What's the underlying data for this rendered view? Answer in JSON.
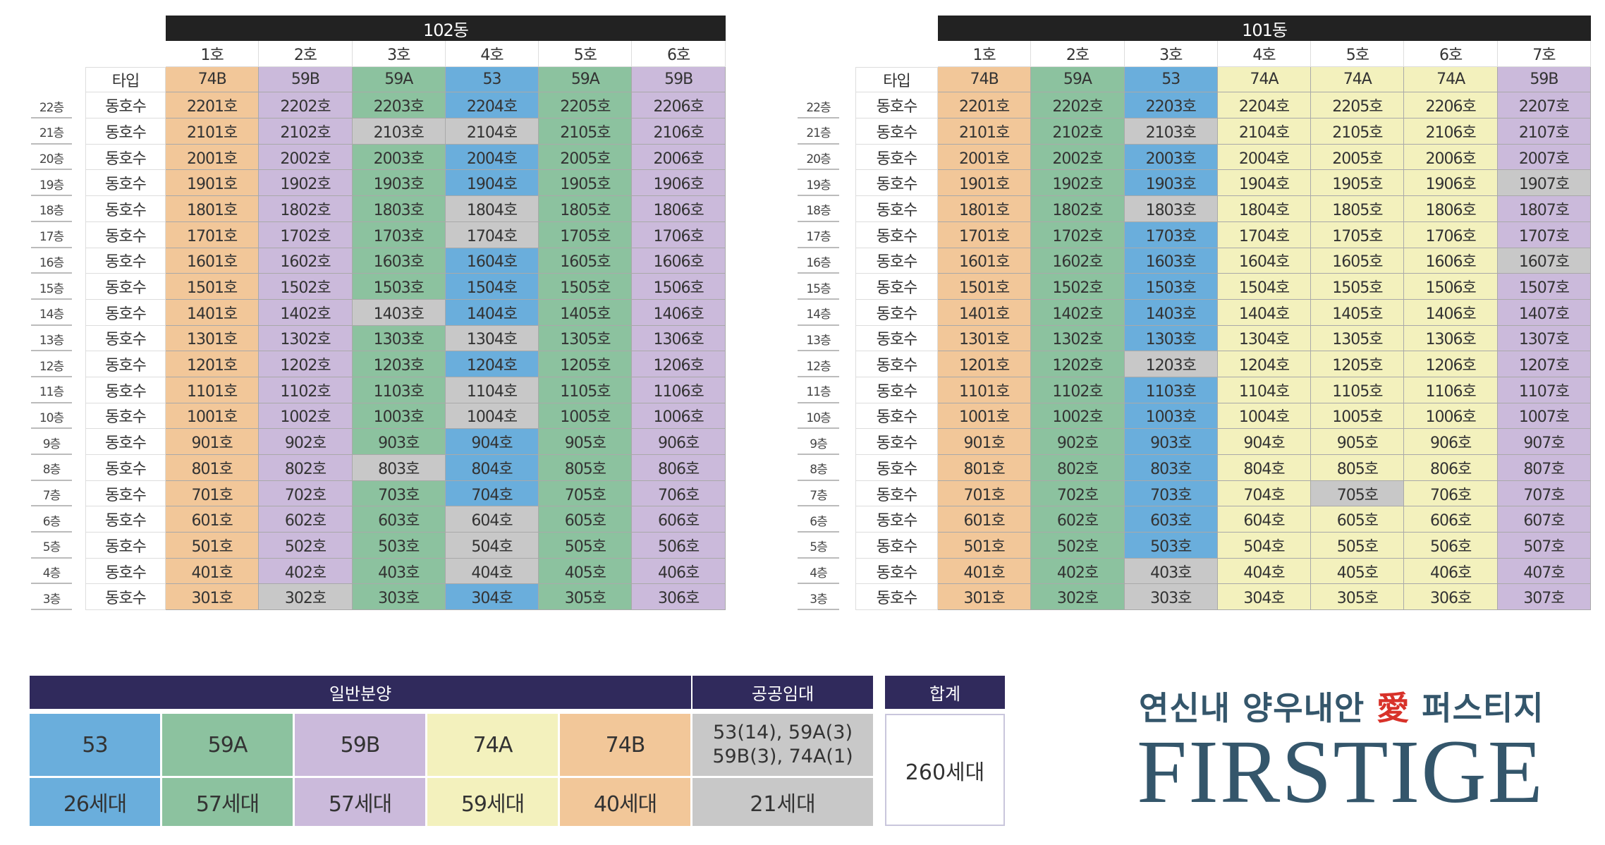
{
  "colors": {
    "53": "#6aaedc",
    "59A": "#8cc29f",
    "59B": "#cbbadb",
    "74A": "#f3f1bd",
    "74B": "#f2c799",
    "public": "#c8c8c8",
    "header": "#302a5c",
    "dong_header": "#222222"
  },
  "labels": {
    "type": "타입",
    "unit": "동호수"
  },
  "buildings": [
    {
      "name": "102동",
      "columns": [
        "1호",
        "2호",
        "3호",
        "4호",
        "5호",
        "6호"
      ],
      "types": [
        "74B",
        "59B",
        "59A",
        "53",
        "59A",
        "59B"
      ],
      "floors": [
        {
          "floor": "22층",
          "units": [
            "2201호",
            "2202호",
            "2203호",
            "2204호",
            "2205호",
            "2206호"
          ],
          "public": []
        },
        {
          "floor": "21층",
          "units": [
            "2101호",
            "2102호",
            "2103호",
            "2104호",
            "2105호",
            "2106호"
          ],
          "public": [
            2,
            3
          ]
        },
        {
          "floor": "20층",
          "units": [
            "2001호",
            "2002호",
            "2003호",
            "2004호",
            "2005호",
            "2006호"
          ],
          "public": []
        },
        {
          "floor": "19층",
          "units": [
            "1901호",
            "1902호",
            "1903호",
            "1904호",
            "1905호",
            "1906호"
          ],
          "public": []
        },
        {
          "floor": "18층",
          "units": [
            "1801호",
            "1802호",
            "1803호",
            "1804호",
            "1805호",
            "1806호"
          ],
          "public": [
            3
          ]
        },
        {
          "floor": "17층",
          "units": [
            "1701호",
            "1702호",
            "1703호",
            "1704호",
            "1705호",
            "1706호"
          ],
          "public": [
            3
          ]
        },
        {
          "floor": "16층",
          "units": [
            "1601호",
            "1602호",
            "1603호",
            "1604호",
            "1605호",
            "1606호"
          ],
          "public": []
        },
        {
          "floor": "15층",
          "units": [
            "1501호",
            "1502호",
            "1503호",
            "1504호",
            "1505호",
            "1506호"
          ],
          "public": []
        },
        {
          "floor": "14층",
          "units": [
            "1401호",
            "1402호",
            "1403호",
            "1404호",
            "1405호",
            "1406호"
          ],
          "public": [
            2
          ]
        },
        {
          "floor": "13층",
          "units": [
            "1301호",
            "1302호",
            "1303호",
            "1304호",
            "1305호",
            "1306호"
          ],
          "public": [
            3
          ]
        },
        {
          "floor": "12층",
          "units": [
            "1201호",
            "1202호",
            "1203호",
            "1204호",
            "1205호",
            "1206호"
          ],
          "public": []
        },
        {
          "floor": "11층",
          "units": [
            "1101호",
            "1102호",
            "1103호",
            "1104호",
            "1105호",
            "1106호"
          ],
          "public": [
            3
          ]
        },
        {
          "floor": "10층",
          "units": [
            "1001호",
            "1002호",
            "1003호",
            "1004호",
            "1005호",
            "1006호"
          ],
          "public": [
            3
          ]
        },
        {
          "floor": "9층",
          "units": [
            "901호",
            "902호",
            "903호",
            "904호",
            "905호",
            "906호"
          ],
          "public": []
        },
        {
          "floor": "8층",
          "units": [
            "801호",
            "802호",
            "803호",
            "804호",
            "805호",
            "806호"
          ],
          "public": [
            2
          ]
        },
        {
          "floor": "7층",
          "units": [
            "701호",
            "702호",
            "703호",
            "704호",
            "705호",
            "706호"
          ],
          "public": []
        },
        {
          "floor": "6층",
          "units": [
            "601호",
            "602호",
            "603호",
            "604호",
            "605호",
            "606호"
          ],
          "public": [
            3
          ]
        },
        {
          "floor": "5층",
          "units": [
            "501호",
            "502호",
            "503호",
            "504호",
            "505호",
            "506호"
          ],
          "public": [
            3
          ]
        },
        {
          "floor": "4층",
          "units": [
            "401호",
            "402호",
            "403호",
            "404호",
            "405호",
            "406호"
          ],
          "public": [
            3
          ]
        },
        {
          "floor": "3층",
          "units": [
            "301호",
            "302호",
            "303호",
            "304호",
            "305호",
            "306호"
          ],
          "public": [
            1
          ]
        }
      ]
    },
    {
      "name": "101동",
      "columns": [
        "1호",
        "2호",
        "3호",
        "4호",
        "5호",
        "6호",
        "7호"
      ],
      "types": [
        "74B",
        "59A",
        "53",
        "74A",
        "74A",
        "74A",
        "59B"
      ],
      "floors": [
        {
          "floor": "22층",
          "units": [
            "2201호",
            "2202호",
            "2203호",
            "2204호",
            "2205호",
            "2206호",
            "2207호"
          ],
          "public": []
        },
        {
          "floor": "21층",
          "units": [
            "2101호",
            "2102호",
            "2103호",
            "2104호",
            "2105호",
            "2106호",
            "2107호"
          ],
          "public": [
            2
          ]
        },
        {
          "floor": "20층",
          "units": [
            "2001호",
            "2002호",
            "2003호",
            "2004호",
            "2005호",
            "2006호",
            "2007호"
          ],
          "public": []
        },
        {
          "floor": "19층",
          "units": [
            "1901호",
            "1902호",
            "1903호",
            "1904호",
            "1905호",
            "1906호",
            "1907호"
          ],
          "public": [
            6
          ]
        },
        {
          "floor": "18층",
          "units": [
            "1801호",
            "1802호",
            "1803호",
            "1804호",
            "1805호",
            "1806호",
            "1807호"
          ],
          "public": [
            2
          ]
        },
        {
          "floor": "17층",
          "units": [
            "1701호",
            "1702호",
            "1703호",
            "1704호",
            "1705호",
            "1706호",
            "1707호"
          ],
          "public": []
        },
        {
          "floor": "16층",
          "units": [
            "1601호",
            "1602호",
            "1603호",
            "1604호",
            "1605호",
            "1606호",
            "1607호"
          ],
          "public": [
            6
          ]
        },
        {
          "floor": "15층",
          "units": [
            "1501호",
            "1502호",
            "1503호",
            "1504호",
            "1505호",
            "1506호",
            "1507호"
          ],
          "public": []
        },
        {
          "floor": "14층",
          "units": [
            "1401호",
            "1402호",
            "1403호",
            "1404호",
            "1405호",
            "1406호",
            "1407호"
          ],
          "public": []
        },
        {
          "floor": "13층",
          "units": [
            "1301호",
            "1302호",
            "1303호",
            "1304호",
            "1305호",
            "1306호",
            "1307호"
          ],
          "public": []
        },
        {
          "floor": "12층",
          "units": [
            "1201호",
            "1202호",
            "1203호",
            "1204호",
            "1205호",
            "1206호",
            "1207호"
          ],
          "public": [
            2
          ]
        },
        {
          "floor": "11층",
          "units": [
            "1101호",
            "1102호",
            "1103호",
            "1104호",
            "1105호",
            "1106호",
            "1107호"
          ],
          "public": []
        },
        {
          "floor": "10층",
          "units": [
            "1001호",
            "1002호",
            "1003호",
            "1004호",
            "1005호",
            "1006호",
            "1007호"
          ],
          "public": []
        },
        {
          "floor": "9층",
          "units": [
            "901호",
            "902호",
            "903호",
            "904호",
            "905호",
            "906호",
            "907호"
          ],
          "public": []
        },
        {
          "floor": "8층",
          "units": [
            "801호",
            "802호",
            "803호",
            "804호",
            "805호",
            "806호",
            "807호"
          ],
          "public": []
        },
        {
          "floor": "7층",
          "units": [
            "701호",
            "702호",
            "703호",
            "704호",
            "705호",
            "706호",
            "707호"
          ],
          "public": [
            4
          ]
        },
        {
          "floor": "6층",
          "units": [
            "601호",
            "602호",
            "603호",
            "604호",
            "605호",
            "606호",
            "607호"
          ],
          "public": []
        },
        {
          "floor": "5층",
          "units": [
            "501호",
            "502호",
            "503호",
            "504호",
            "505호",
            "506호",
            "507호"
          ],
          "public": []
        },
        {
          "floor": "4층",
          "units": [
            "401호",
            "402호",
            "403호",
            "404호",
            "405호",
            "406호",
            "407호"
          ],
          "public": [
            2
          ]
        },
        {
          "floor": "3층",
          "units": [
            "301호",
            "302호",
            "303호",
            "304호",
            "305호",
            "306호",
            "307호"
          ],
          "public": [
            2
          ]
        }
      ]
    }
  ],
  "legend": {
    "general_title": "일반분양",
    "public_title": "공공임대",
    "total_title": "합계",
    "general": [
      {
        "type": "53",
        "count": "26세대"
      },
      {
        "type": "59A",
        "count": "57세대"
      },
      {
        "type": "59B",
        "count": "57세대"
      },
      {
        "type": "74A",
        "count": "59세대"
      },
      {
        "type": "74B",
        "count": "40세대"
      }
    ],
    "public_line1": "53(14), 59A(3)",
    "public_line2": "59B(3), 74A(1)",
    "public_count": "21세대",
    "total": "260세대"
  },
  "logo": {
    "korean_prefix": "연신내 양우내안",
    "korean_love": "愛",
    "korean_suffix": "퍼스티지",
    "english": "FIRSTIGE"
  }
}
